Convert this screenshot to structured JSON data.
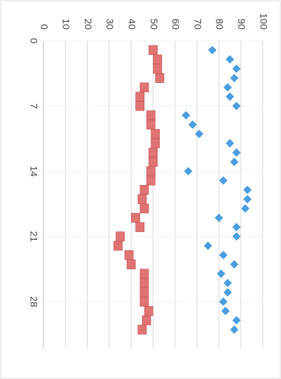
{
  "chart_data": {
    "type": "scatter",
    "xlim": [
      0,
      33
    ],
    "xticks": [
      0,
      7,
      14,
      21,
      28
    ],
    "ylim": [
      0,
      100
    ],
    "yticks": [
      0,
      10,
      20,
      30,
      40,
      50,
      60,
      70,
      80,
      90,
      100
    ],
    "grid": true,
    "x": [
      1,
      2,
      3,
      4,
      5,
      6,
      7,
      8,
      9,
      10,
      11,
      12,
      13,
      14,
      15,
      16,
      17,
      18,
      19,
      20,
      21,
      22,
      23,
      24,
      25,
      26,
      27,
      28,
      29,
      30,
      31
    ],
    "series": [
      {
        "color": "#4a9de0",
        "marker": "diamond",
        "values": [
          77,
          85,
          88,
          87,
          84,
          85,
          88,
          65,
          68,
          71,
          85,
          88,
          87,
          66,
          82,
          93,
          93,
          92,
          80,
          88,
          88,
          75,
          82,
          87,
          81,
          84,
          84,
          82,
          83,
          88,
          87
        ]
      },
      {
        "color": "#e07474",
        "marker": "square",
        "values": [
          50,
          52,
          52,
          53,
          46,
          44,
          44,
          49,
          49,
          51,
          51,
          50,
          50,
          49,
          49,
          46,
          45,
          46,
          42,
          44,
          35,
          34,
          39,
          40,
          46,
          46,
          46,
          46,
          48,
          47,
          45
        ]
      }
    ]
  }
}
